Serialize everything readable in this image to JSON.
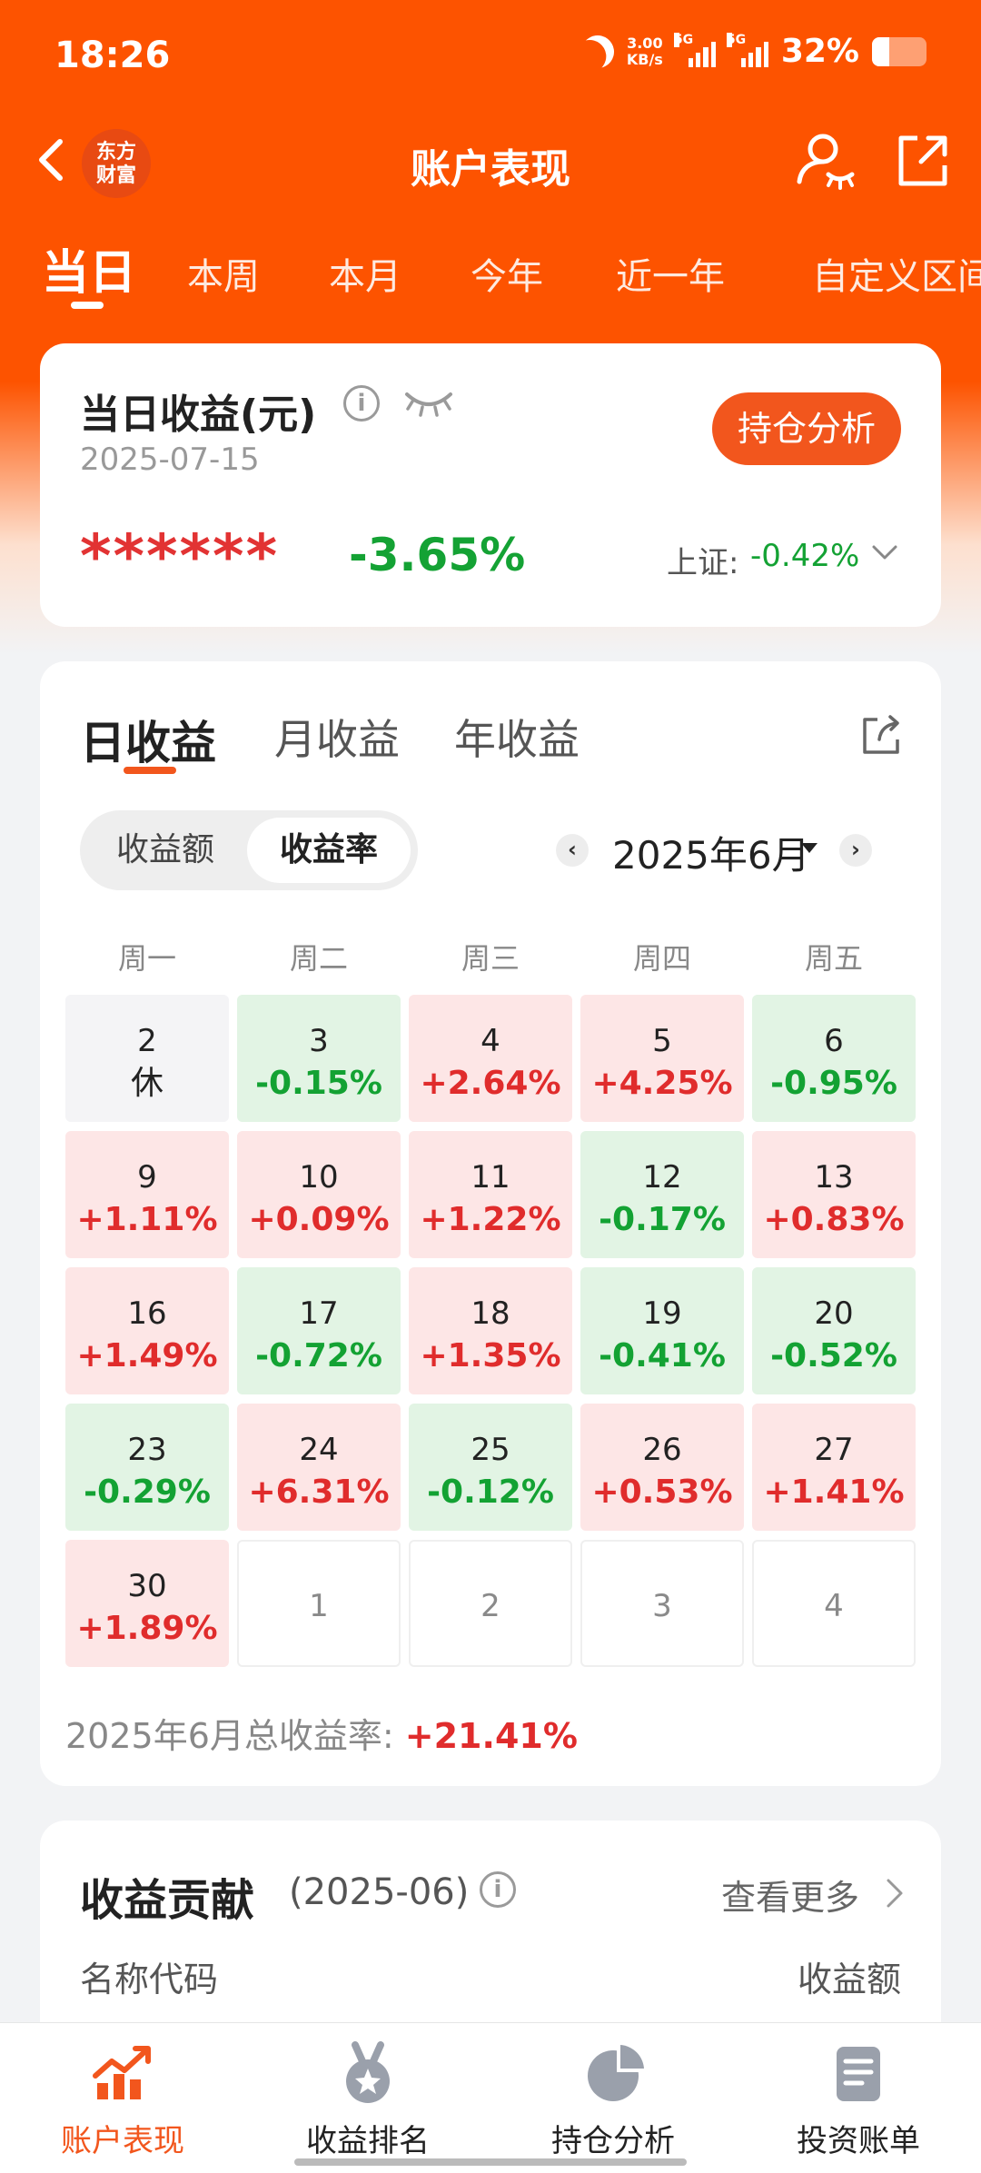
{
  "status_bar": {
    "time": "18:26",
    "net_speed_value": "3.00",
    "net_speed_unit": "KB/s",
    "network_1": "5G",
    "network_2": "5G",
    "battery": "32%",
    "battery_level": 0.32
  },
  "header": {
    "title": "账户表现",
    "logo_line1": "东方",
    "logo_line2": "财富"
  },
  "period_tabs": [
    "当日",
    "本周",
    "本月",
    "今年",
    "近一年",
    "自定义区间"
  ],
  "summary": {
    "title": "当日收益(元)",
    "date": "2025-07-15",
    "hidden_amount": "******",
    "pct": "-3.65%",
    "index_label": "上证:",
    "index_value": "-0.42%",
    "position_button": "持仓分析"
  },
  "calendar": {
    "tabs": [
      "日收益",
      "月收益",
      "年收益"
    ],
    "toggle": [
      "收益额",
      "收益率"
    ],
    "month": "2025年6月",
    "weekdays": [
      "周一",
      "周二",
      "周三",
      "周四",
      "周五"
    ],
    "rows": [
      [
        {
          "d": "2",
          "v": "休",
          "t": "rest"
        },
        {
          "d": "3",
          "v": "-0.15%",
          "t": "down"
        },
        {
          "d": "4",
          "v": "+2.64%",
          "t": "up"
        },
        {
          "d": "5",
          "v": "+4.25%",
          "t": "up"
        },
        {
          "d": "6",
          "v": "-0.95%",
          "t": "down"
        }
      ],
      [
        {
          "d": "9",
          "v": "+1.11%",
          "t": "up"
        },
        {
          "d": "10",
          "v": "+0.09%",
          "t": "up"
        },
        {
          "d": "11",
          "v": "+1.22%",
          "t": "up"
        },
        {
          "d": "12",
          "v": "-0.17%",
          "t": "down"
        },
        {
          "d": "13",
          "v": "+0.83%",
          "t": "up"
        }
      ],
      [
        {
          "d": "16",
          "v": "+1.49%",
          "t": "up"
        },
        {
          "d": "17",
          "v": "-0.72%",
          "t": "down"
        },
        {
          "d": "18",
          "v": "+1.35%",
          "t": "up"
        },
        {
          "d": "19",
          "v": "-0.41%",
          "t": "down"
        },
        {
          "d": "20",
          "v": "-0.52%",
          "t": "down"
        }
      ],
      [
        {
          "d": "23",
          "v": "-0.29%",
          "t": "down"
        },
        {
          "d": "24",
          "v": "+6.31%",
          "t": "up"
        },
        {
          "d": "25",
          "v": "-0.12%",
          "t": "down"
        },
        {
          "d": "26",
          "v": "+0.53%",
          "t": "up"
        },
        {
          "d": "27",
          "v": "+1.41%",
          "t": "up"
        }
      ],
      [
        {
          "d": "30",
          "v": "+1.89%",
          "t": "up"
        },
        {
          "d": "1",
          "v": "",
          "t": "empty"
        },
        {
          "d": "2",
          "v": "",
          "t": "empty"
        },
        {
          "d": "3",
          "v": "",
          "t": "empty"
        },
        {
          "d": "4",
          "v": "",
          "t": "empty"
        }
      ]
    ],
    "total_label": "2025年6月总收益率:",
    "total_value": "+21.41%"
  },
  "contribution": {
    "title": "收益贡献",
    "period": "(2025-06)",
    "see_more": "查看更多",
    "col_name": "名称代码",
    "col_amount": "收益额"
  },
  "bottom_nav": [
    "账户表现",
    "收益排名",
    "持仓分析",
    "投资账单"
  ],
  "colors": {
    "brand": "#fd5300",
    "up": "#e02c2c",
    "down": "#13a233",
    "up_bg": "#fde6e6",
    "down_bg": "#e2f4e4"
  },
  "icons": [
    "back-arrow-icon",
    "profile-eye-icon",
    "share-out-icon",
    "info-icon",
    "eye-closed-icon",
    "chevron-down-icon",
    "chevron-left-icon",
    "chevron-right-icon",
    "trend-chart-icon",
    "medal-icon",
    "pie-chart-icon",
    "bill-icon"
  ]
}
